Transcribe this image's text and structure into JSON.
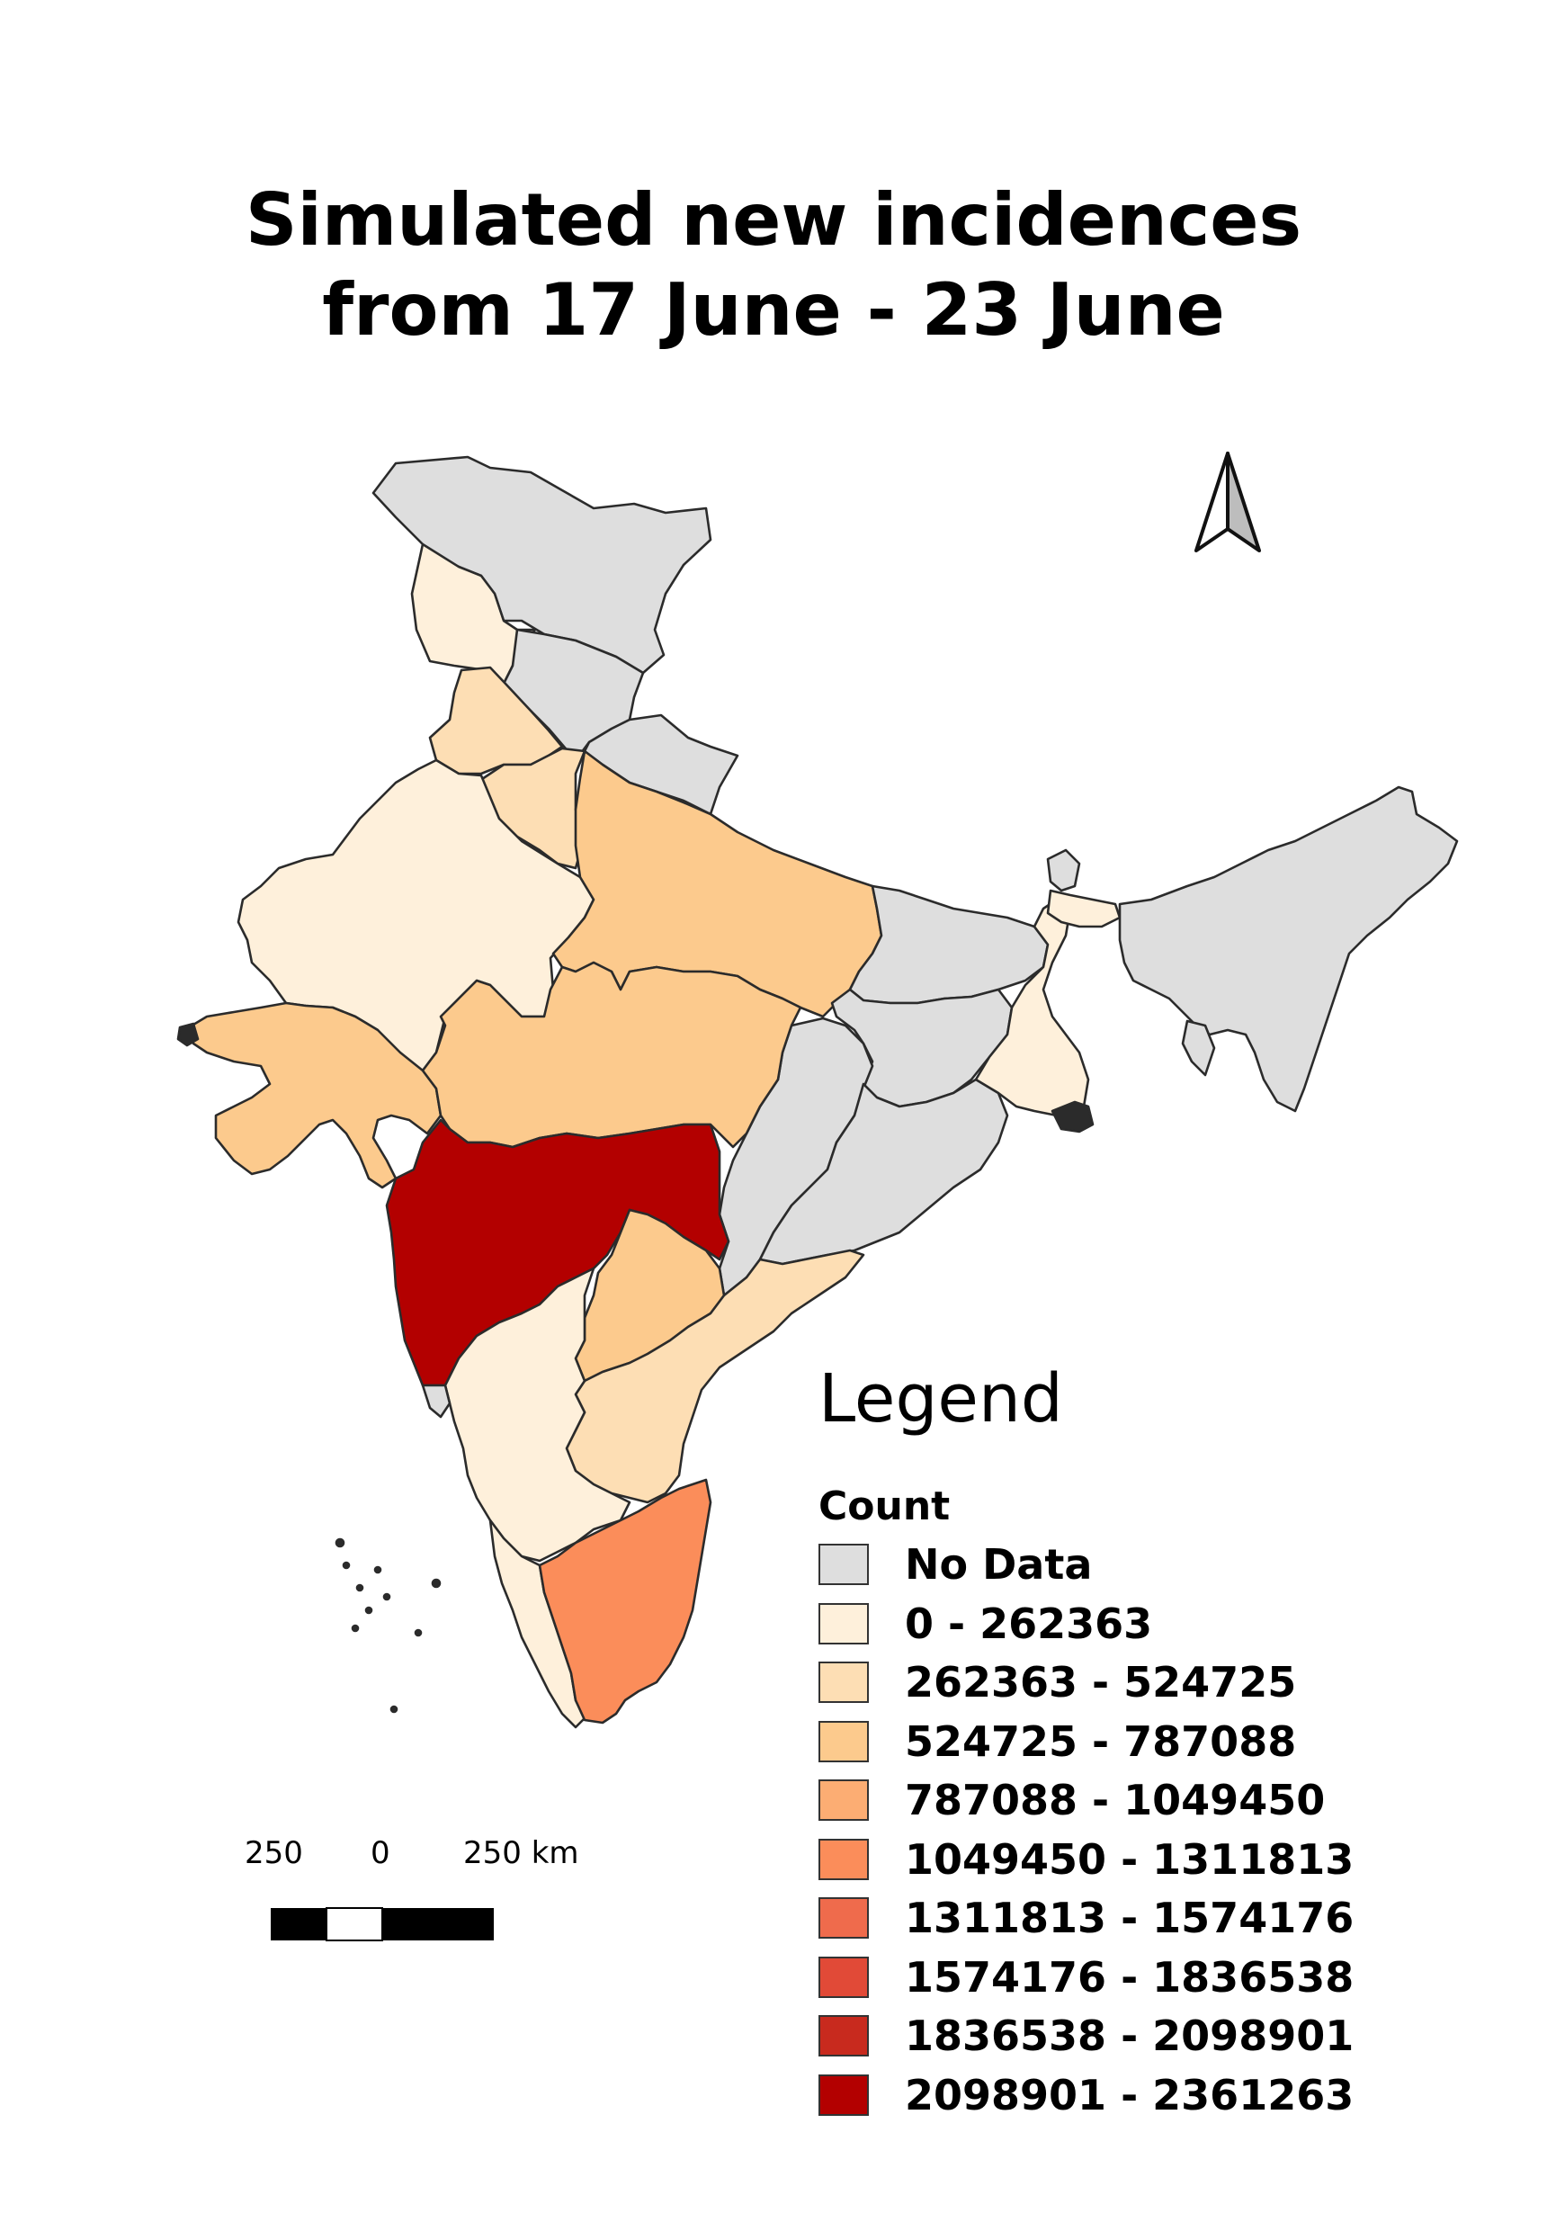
{
  "title": {
    "line1": "Simulated new incidences",
    "line2": "from 17 June - 23 June"
  },
  "north_arrow_icon": "north-arrow-icon",
  "scale_bar": {
    "labels": [
      "250",
      "0",
      "250 km"
    ]
  },
  "legend": {
    "title": "Legend",
    "subtitle": "Count",
    "items": [
      {
        "label": "No Data",
        "color": "#dedede"
      },
      {
        "label": "0 - 262363",
        "color": "#fef0db"
      },
      {
        "label": "262363 - 524725",
        "color": "#fddeb4"
      },
      {
        "label": "524725 - 787088",
        "color": "#fcca8d"
      },
      {
        "label": "787088 - 1049450",
        "color": "#fcad73"
      },
      {
        "label": "1049450 - 1311813",
        "color": "#fb8d5a"
      },
      {
        "label": "1311813 - 1574176",
        "color": "#ef6b4c"
      },
      {
        "label": "1574176 - 1836538",
        "color": "#e14a37"
      },
      {
        "label": "1836538 - 2098901",
        "color": "#c82a1e"
      },
      {
        "label": "2098901 - 2361263",
        "color": "#b30000"
      }
    ]
  }
}
